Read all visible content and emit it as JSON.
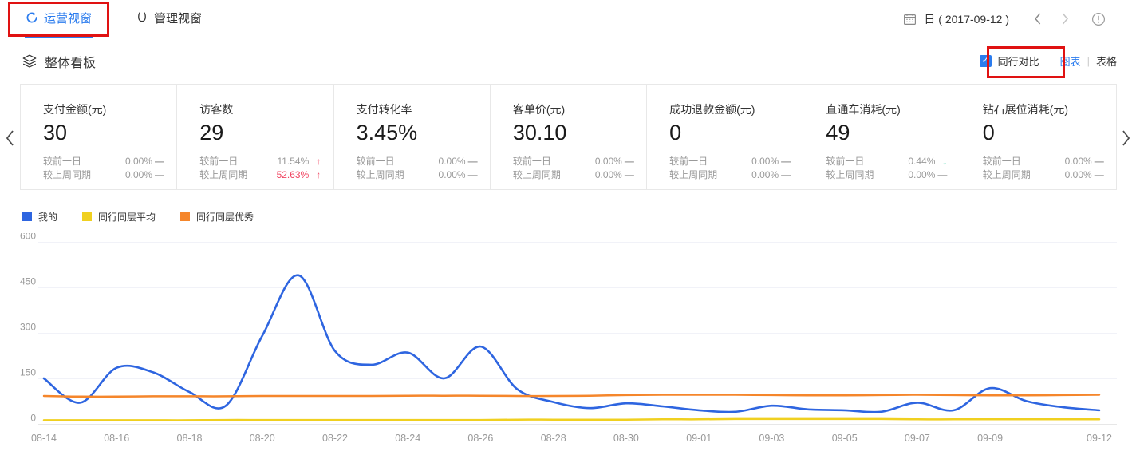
{
  "nav": {
    "tabs": [
      {
        "label": "运营视窗",
        "active": true
      },
      {
        "label": "管理视窗",
        "active": false
      }
    ],
    "date_label": "日 ( 2017-09-12 )"
  },
  "board": {
    "title": "整体看板",
    "compare_label": "同行对比",
    "compare_checked": true,
    "check_glyph": "✓",
    "view_chart": "图表",
    "view_sep": "|",
    "view_table": "表格"
  },
  "colors": {
    "accent_blue": "#2b7cee",
    "line_blue": "#2e65e0",
    "line_yellow": "#f0d020",
    "line_orange": "#f5862b",
    "rise_red": "#f0435f",
    "fall_green": "#00c08d",
    "annotation_red": "#e01212",
    "muted_gray": "#999999"
  },
  "cards": [
    {
      "title": "支付金额(元)",
      "value": "30",
      "deltas": [
        {
          "label": "较前一日",
          "value": "0.00%",
          "value_color": "#999999",
          "arrow": "—",
          "arrow_color": "#999999"
        },
        {
          "label": "较上周同期",
          "value": "0.00%",
          "value_color": "#999999",
          "arrow": "—",
          "arrow_color": "#999999"
        }
      ]
    },
    {
      "title": "访客数",
      "value": "29",
      "deltas": [
        {
          "label": "较前一日",
          "value": "11.54%",
          "value_color": "#999999",
          "arrow": "↑",
          "arrow_color": "#f0435f"
        },
        {
          "label": "较上周同期",
          "value": "52.63%",
          "value_color": "#f0435f",
          "arrow": "↑",
          "arrow_color": "#f0435f"
        }
      ]
    },
    {
      "title": "支付转化率",
      "value": "3.45%",
      "deltas": [
        {
          "label": "较前一日",
          "value": "0.00%",
          "value_color": "#999999",
          "arrow": "—",
          "arrow_color": "#999999"
        },
        {
          "label": "较上周同期",
          "value": "0.00%",
          "value_color": "#999999",
          "arrow": "—",
          "arrow_color": "#999999"
        }
      ]
    },
    {
      "title": "客单价(元)",
      "value": "30.10",
      "deltas": [
        {
          "label": "较前一日",
          "value": "0.00%",
          "value_color": "#999999",
          "arrow": "—",
          "arrow_color": "#999999"
        },
        {
          "label": "较上周同期",
          "value": "0.00%",
          "value_color": "#999999",
          "arrow": "—",
          "arrow_color": "#999999"
        }
      ]
    },
    {
      "title": "成功退款金额(元)",
      "value": "0",
      "deltas": [
        {
          "label": "较前一日",
          "value": "0.00%",
          "value_color": "#999999",
          "arrow": "—",
          "arrow_color": "#999999"
        },
        {
          "label": "较上周同期",
          "value": "0.00%",
          "value_color": "#999999",
          "arrow": "—",
          "arrow_color": "#999999"
        }
      ]
    },
    {
      "title": "直通车消耗(元)",
      "value": "49",
      "deltas": [
        {
          "label": "较前一日",
          "value": "0.44%",
          "value_color": "#999999",
          "arrow": "↓",
          "arrow_color": "#00c08d"
        },
        {
          "label": "较上周同期",
          "value": "0.00%",
          "value_color": "#999999",
          "arrow": "—",
          "arrow_color": "#999999"
        }
      ]
    },
    {
      "title": "钻石展位消耗(元)",
      "value": "0",
      "deltas": [
        {
          "label": "较前一日",
          "value": "0.00%",
          "value_color": "#999999",
          "arrow": "—",
          "arrow_color": "#999999"
        },
        {
          "label": "较上周同期",
          "value": "0.00%",
          "value_color": "#999999",
          "arrow": "—",
          "arrow_color": "#999999"
        }
      ]
    }
  ],
  "legend": [
    {
      "label": "我的",
      "color": "#2e65e0"
    },
    {
      "label": "同行同层平均",
      "color": "#f0d020"
    },
    {
      "label": "同行同层优秀",
      "color": "#f5862b"
    }
  ],
  "chart_data": {
    "type": "line",
    "title": "",
    "xlabel": "",
    "ylabel": "",
    "ylim": [
      0,
      600
    ],
    "yticks": [
      0,
      150,
      300,
      450,
      600
    ],
    "grid": true,
    "legend_position": "top-left",
    "categories": [
      "08-14",
      "08-15",
      "08-16",
      "08-17",
      "08-18",
      "08-19",
      "08-20",
      "08-21",
      "08-22",
      "08-23",
      "08-24",
      "08-25",
      "08-26",
      "08-27",
      "08-28",
      "08-29",
      "08-30",
      "08-31",
      "09-01",
      "09-02",
      "09-03",
      "09-04",
      "09-05",
      "09-06",
      "09-07",
      "09-08",
      "09-09",
      "09-10",
      "09-11",
      "09-12"
    ],
    "xticks": [
      {
        "index": 0,
        "label": "08-14"
      },
      {
        "index": 2,
        "label": "08-16"
      },
      {
        "index": 4,
        "label": "08-18"
      },
      {
        "index": 6,
        "label": "08-20"
      },
      {
        "index": 8,
        "label": "08-22"
      },
      {
        "index": 10,
        "label": "08-24"
      },
      {
        "index": 12,
        "label": "08-26"
      },
      {
        "index": 14,
        "label": "08-28"
      },
      {
        "index": 16,
        "label": "08-30"
      },
      {
        "index": 18,
        "label": "09-01"
      },
      {
        "index": 20,
        "label": "09-03"
      },
      {
        "index": 22,
        "label": "09-05"
      },
      {
        "index": 24,
        "label": "09-07"
      },
      {
        "index": 26,
        "label": "09-09"
      },
      {
        "index": 29,
        "label": "09-12"
      }
    ],
    "series": [
      {
        "name": "我的",
        "color": "#2e65e0",
        "width": 2.6,
        "values": [
          150,
          70,
          185,
          170,
          105,
          60,
          290,
          490,
          240,
          195,
          235,
          150,
          255,
          115,
          72,
          52,
          68,
          58,
          45,
          40,
          60,
          48,
          45,
          40,
          70,
          45,
          118,
          75,
          55,
          45
        ]
      },
      {
        "name": "同行同层平均",
        "color": "#f0d020",
        "width": 2.5,
        "values": [
          12,
          12,
          12,
          12,
          12,
          13,
          13,
          13,
          13,
          13,
          13,
          13,
          13,
          14,
          14,
          14,
          14,
          15,
          15,
          16,
          16,
          16,
          16,
          16,
          15,
          15,
          15,
          15,
          15,
          15
        ]
      },
      {
        "name": "同行同层优秀",
        "color": "#f5862b",
        "width": 2.5,
        "values": [
          92,
          90,
          90,
          91,
          91,
          91,
          92,
          92,
          92,
          92,
          93,
          93,
          93,
          92,
          92,
          93,
          95,
          96,
          96,
          96,
          95,
          94,
          94,
          95,
          96,
          95,
          94,
          94,
          95,
          96
        ]
      }
    ]
  }
}
